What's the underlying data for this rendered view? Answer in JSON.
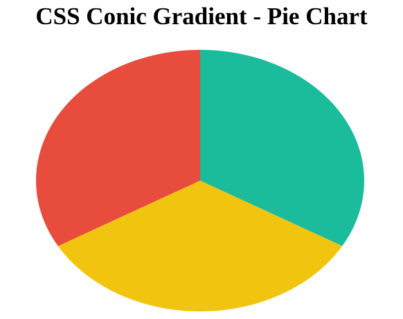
{
  "chart_data": {
    "type": "pie",
    "title": "CSS Conic Gradient - Pie Chart",
    "start_angle_deg": 0,
    "slices": [
      {
        "value": 33.33,
        "color": "#1abc9c"
      },
      {
        "value": 33.33,
        "color": "#f1c40f"
      },
      {
        "value": 33.34,
        "color": "#e74c3c"
      }
    ]
  }
}
